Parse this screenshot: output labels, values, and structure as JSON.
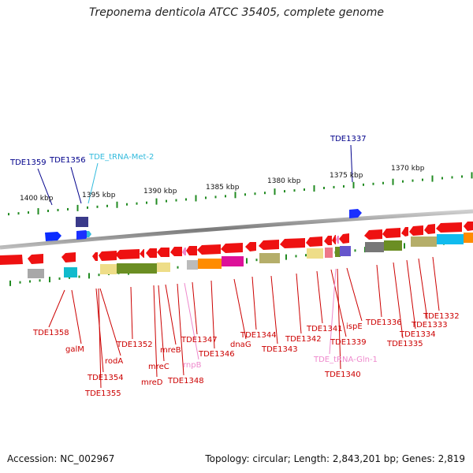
{
  "title": "Treponema denticola ATCC 35405, complete genome",
  "footer": {
    "accession": "Accession: NC_002967",
    "summary": "Topology: circular; Length: 2,843,201 bp; Genes: 2,819"
  },
  "scale_labels": [
    "1400 kbp",
    "1395 kbp",
    "1390 kbp",
    "1385 kbp",
    "1380 kbp",
    "1375 kbp",
    "1370 kbp"
  ],
  "top_labels": [
    {
      "text": "TDE1359",
      "color": "#00008b"
    },
    {
      "text": "TDE1356",
      "color": "#00008b"
    },
    {
      "text": "TDE_tRNA-Met-2",
      "color": "#33bbdd"
    },
    {
      "text": "TDE1337",
      "color": "#00008b"
    }
  ],
  "bottom_labels": [
    {
      "text": "TDE1358",
      "color": "#cc0000"
    },
    {
      "text": "galM",
      "color": "#cc0000"
    },
    {
      "text": "rodA",
      "color": "#cc0000"
    },
    {
      "text": "TDE1354",
      "color": "#cc0000"
    },
    {
      "text": "TDE1355",
      "color": "#cc0000"
    },
    {
      "text": "TDE1352",
      "color": "#cc0000"
    },
    {
      "text": "mreD",
      "color": "#cc0000"
    },
    {
      "text": "mreC",
      "color": "#cc0000"
    },
    {
      "text": "mreB",
      "color": "#cc0000"
    },
    {
      "text": "TDE1348",
      "color": "#cc0000"
    },
    {
      "text": "rnpB",
      "color": "#ee88cc"
    },
    {
      "text": "TDE1347",
      "color": "#cc0000"
    },
    {
      "text": "TDE1346",
      "color": "#cc0000"
    },
    {
      "text": "dnaG",
      "color": "#cc0000"
    },
    {
      "text": "TDE1344",
      "color": "#cc0000"
    },
    {
      "text": "TDE1343",
      "color": "#cc0000"
    },
    {
      "text": "TDE1342",
      "color": "#cc0000"
    },
    {
      "text": "TDE1341",
      "color": "#cc0000"
    },
    {
      "text": "TDE1339",
      "color": "#cc0000"
    },
    {
      "text": "TDE_tRNA-Gln-1",
      "color": "#ee88cc"
    },
    {
      "text": "TDE1340",
      "color": "#cc0000"
    },
    {
      "text": "ispE",
      "color": "#cc0000"
    },
    {
      "text": "TDE1336",
      "color": "#cc0000"
    },
    {
      "text": "TDE1335",
      "color": "#cc0000"
    },
    {
      "text": "TDE1334",
      "color": "#cc0000"
    },
    {
      "text": "TDE1333",
      "color": "#cc0000"
    },
    {
      "text": "TDE1332",
      "color": "#cc0000"
    }
  ],
  "colors": {
    "gene_forward": "#0000ff",
    "gene_reverse": "#ff0000",
    "backbone": "#888888",
    "ticks": "#228b22"
  }
}
